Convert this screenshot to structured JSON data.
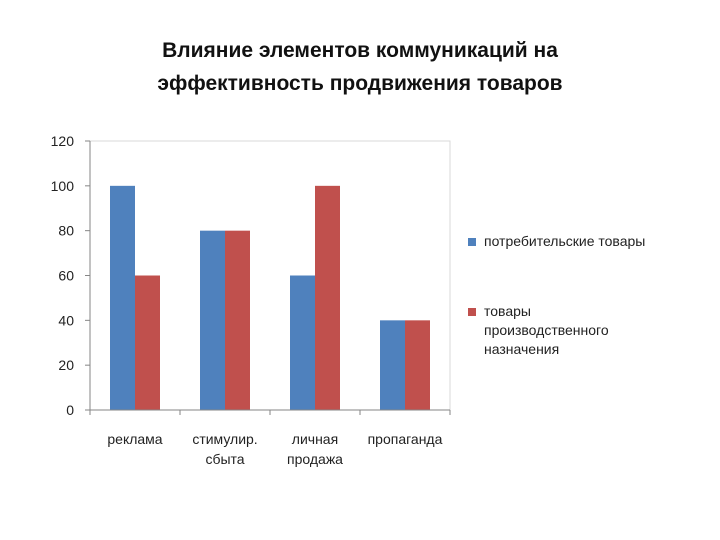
{
  "title": {
    "line1": "Влияние элементов коммуникаций на",
    "line2": "эффективность продвижения товаров"
  },
  "chart_data": {
    "type": "bar",
    "categories": [
      [
        "реклама"
      ],
      [
        "стимулир.",
        "сбыта"
      ],
      [
        "личная",
        "продажа"
      ],
      [
        "пропаганда"
      ]
    ],
    "series": [
      {
        "name": "потребительские товары",
        "values": [
          100,
          80,
          60,
          40
        ],
        "color": "#4F81BD"
      },
      {
        "name": "товары производственного назначения",
        "values": [
          60,
          80,
          100,
          40
        ],
        "color": "#C0504D"
      }
    ],
    "ylim": [
      0,
      120
    ],
    "yticks": [
      "0",
      "20",
      "40",
      "60",
      "80",
      "100",
      "120"
    ],
    "grid": false,
    "legend_position": "right"
  },
  "legend": {
    "items": [
      {
        "lines": [
          "потребительские товары"
        ]
      },
      {
        "lines": [
          "товары",
          "производственного",
          "назначения"
        ]
      }
    ]
  }
}
